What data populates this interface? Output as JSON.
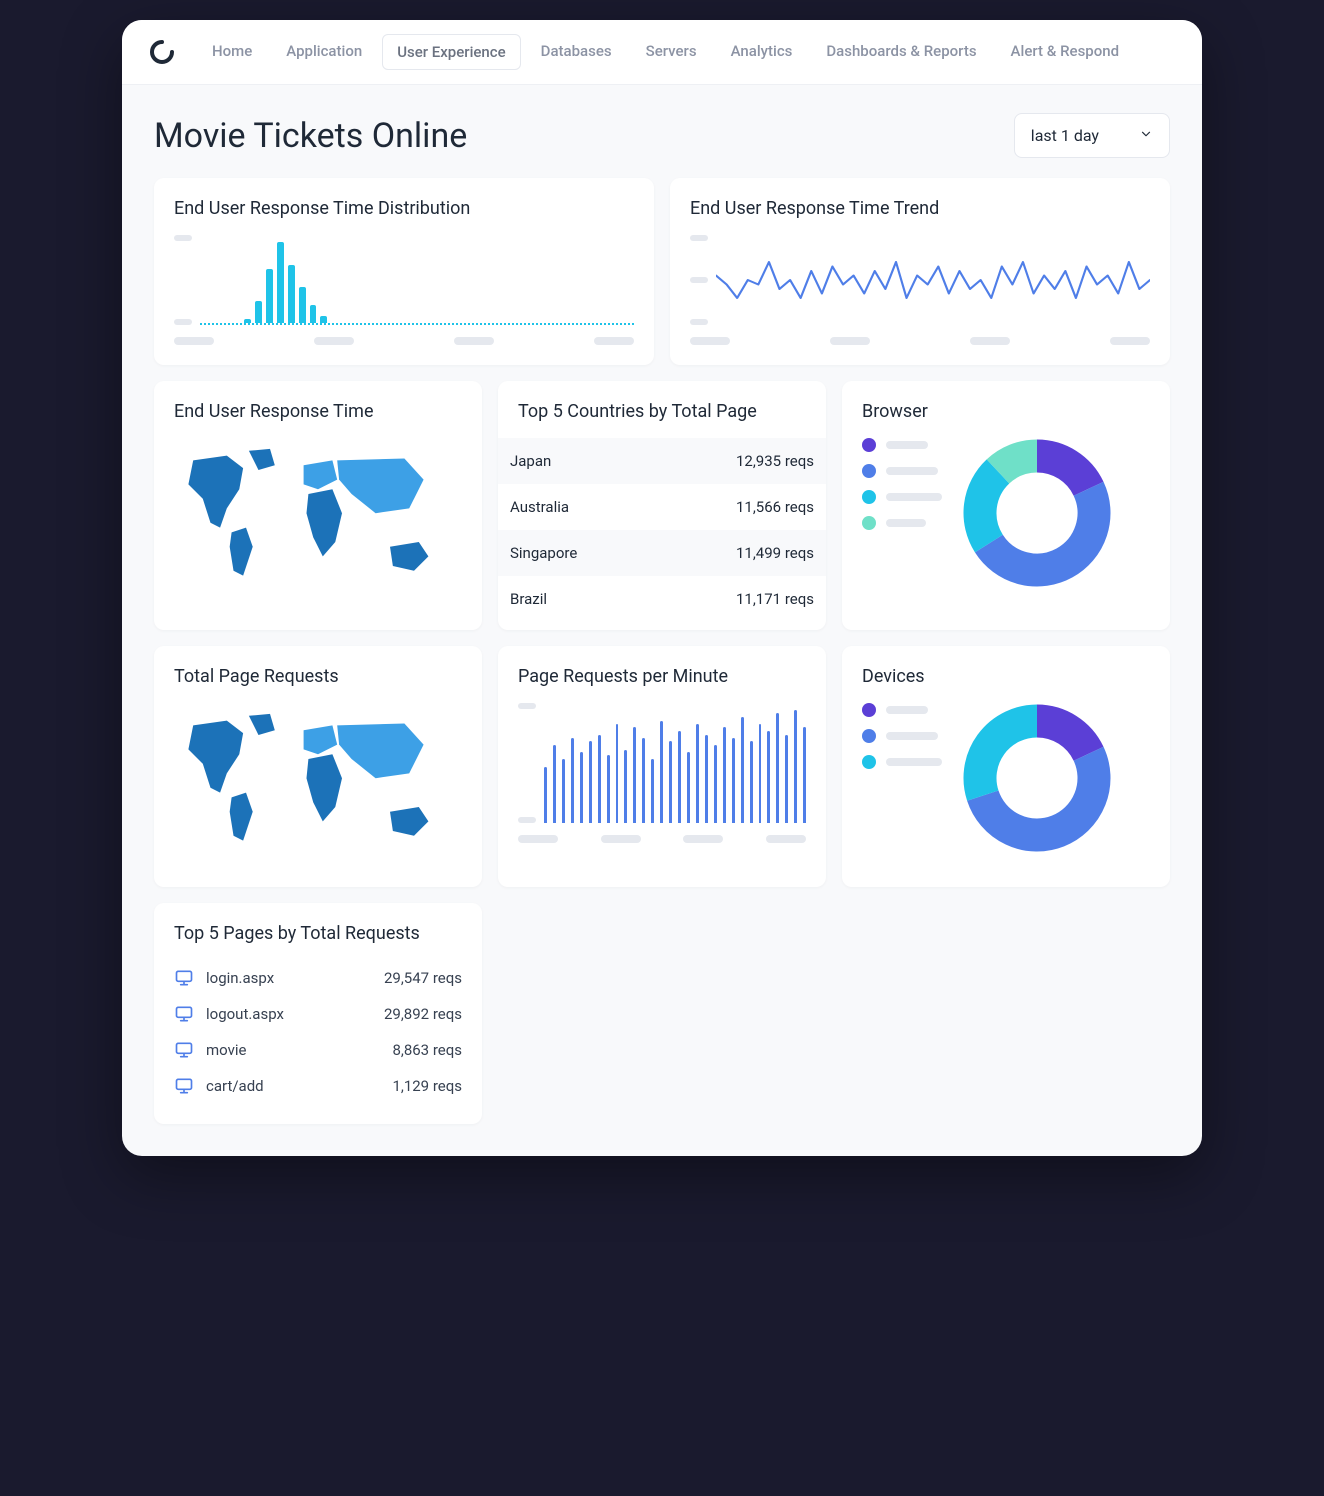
{
  "nav": {
    "items": [
      "Home",
      "Application",
      "User Experience",
      "Databases",
      "Servers",
      "Analytics",
      "Dashboards & Reports",
      "Alert & Respond"
    ],
    "active_index": 2
  },
  "header": {
    "title": "Movie Tickets Online",
    "time_range": "last 1 day"
  },
  "colors": {
    "bg_page": "#f8f9fb",
    "card_bg": "#ffffff",
    "text_dark": "#1f2937",
    "text_muted": "#8c93a4",
    "skeleton": "#e5e8ee",
    "cyan": "#1fc3e8",
    "blue": "#4f7ee8",
    "purple": "#5b3fd6",
    "teal": "#6fe0c8",
    "map_dark": "#1c72b8",
    "map_light": "#3da0e6"
  },
  "cards": {
    "distribution": {
      "title": "End User Response Time Distribution",
      "type": "bar",
      "bar_color": "#1fc3e8",
      "values": [
        0,
        0,
        0,
        0,
        5,
        25,
        60,
        90,
        65,
        40,
        20,
        8,
        0,
        0,
        0,
        0,
        0,
        0,
        0,
        0,
        0,
        0,
        0,
        0,
        0,
        0,
        0,
        0,
        0,
        0,
        0,
        0,
        0,
        0,
        0,
        0,
        0,
        0,
        0,
        0
      ],
      "ylim": [
        0,
        100
      ],
      "baseline_style": "dotted"
    },
    "trend": {
      "title": "End User Response Time Trend",
      "type": "line",
      "line_color": "#4f7ee8",
      "line_width": 2,
      "points": [
        55,
        45,
        30,
        50,
        45,
        70,
        40,
        50,
        30,
        60,
        35,
        65,
        45,
        55,
        35,
        60,
        40,
        70,
        30,
        55,
        45,
        65,
        35,
        60,
        40,
        50,
        30,
        65,
        45,
        70,
        35,
        55,
        40,
        60,
        30,
        65,
        45,
        55,
        35,
        70,
        40,
        50
      ]
    },
    "map1": {
      "title": "End User Response Time"
    },
    "countries": {
      "title": "Top 5 Countries by Total Page",
      "rows": [
        {
          "name": "Japan",
          "value": "12,935 reqs"
        },
        {
          "name": "Australia",
          "value": "11,566 reqs"
        },
        {
          "name": "Singapore",
          "value": "11,499 reqs"
        },
        {
          "name": "Brazil",
          "value": "11,171 reqs"
        }
      ]
    },
    "browser": {
      "title": "Browser",
      "type": "donut",
      "segments": [
        {
          "color": "#5b3fd6",
          "pct": 18
        },
        {
          "color": "#4f7ee8",
          "pct": 48
        },
        {
          "color": "#1fc3e8",
          "pct": 22
        },
        {
          "color": "#6fe0c8",
          "pct": 12
        }
      ]
    },
    "map2": {
      "title": "Total Page Requests"
    },
    "reqs_per_min": {
      "title": "Page Requests per Minute",
      "type": "bar",
      "bar_color": "#4f7ee8",
      "values": [
        40,
        55,
        45,
        60,
        50,
        58,
        62,
        48,
        70,
        52,
        68,
        60,
        45,
        72,
        58,
        65,
        50,
        70,
        62,
        55,
        68,
        60,
        75,
        58,
        70,
        65,
        78,
        62,
        80,
        68
      ]
    },
    "devices": {
      "title": "Devices",
      "type": "donut",
      "segments": [
        {
          "color": "#5b3fd6",
          "pct": 18
        },
        {
          "color": "#4f7ee8",
          "pct": 52
        },
        {
          "color": "#1fc3e8",
          "pct": 30
        }
      ]
    },
    "pages": {
      "title": "Top 5 Pages by Total Requests",
      "rows": [
        {
          "name": "login.aspx",
          "value": "29,547 reqs"
        },
        {
          "name": "logout.aspx",
          "value": "29,892 reqs"
        },
        {
          "name": "movie",
          "value": "8,863 reqs"
        },
        {
          "name": "cart/add",
          "value": "1,129 reqs"
        }
      ]
    }
  }
}
